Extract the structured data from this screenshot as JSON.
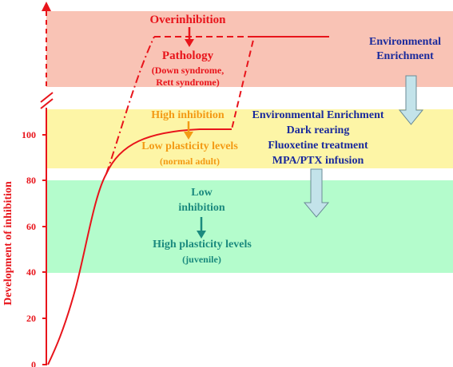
{
  "axis": {
    "ylabel": "Development of inhibition",
    "ticks": [
      "0",
      "20",
      "40",
      "60",
      "80",
      "100"
    ]
  },
  "zones": {
    "over": {
      "title": "Overinhibition",
      "pathology": "Pathology",
      "conditions": [
        "(Down syndrome,",
        "Rett syndrome)"
      ]
    },
    "high": {
      "title": "High inhibition",
      "level": "Low plasticity levels",
      "stage": "(normal adult)"
    },
    "low": {
      "title": [
        "Low",
        "inhibition"
      ],
      "level": "High plasticity levels",
      "stage": "(juvenile)"
    }
  },
  "interventions": {
    "top": [
      "Environmental",
      "Enrichment"
    ],
    "list": [
      "Environmental Enrichment",
      "Dark rearing",
      "Fluoxetine treatment",
      "MPA/PTX infusion"
    ]
  },
  "colors": {
    "pathology_band": "#f9c3b5",
    "adult_band": "#fdf5a6",
    "juvenile_band": "#b4fccc",
    "curve": "#e8141b",
    "orange_text": "#f39a14",
    "teal_text": "#1b8a7e",
    "navy_text": "#1a2a9c",
    "down_arrow_fill": "#c3e3ea"
  },
  "icons": [
    "down-arrow-icon",
    "block-down-arrow-icon",
    "axis-break-icon"
  ]
}
